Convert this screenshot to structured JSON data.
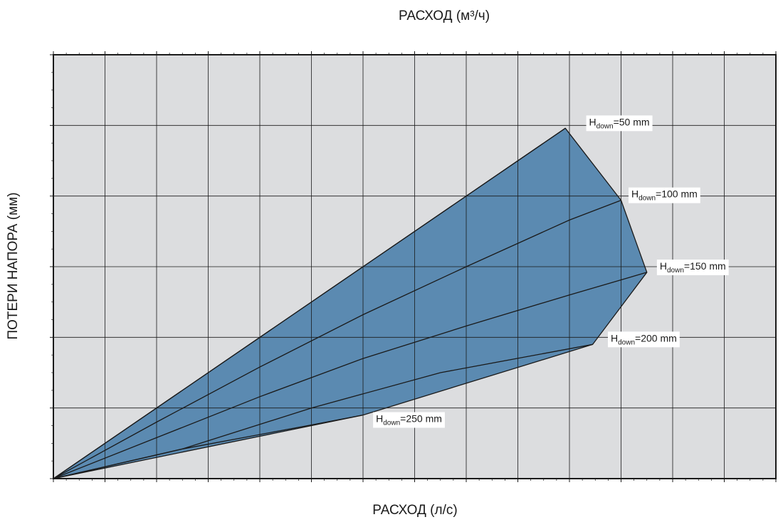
{
  "chart_data": {
    "type": "area",
    "title": "",
    "xlabel": "РАСХОД (л/с)",
    "ylabel": "ПОТЕРИ НАПОРА (мм)",
    "x2label": "РАСХОД (м³/ч)",
    "xlim": [
      0,
      14
    ],
    "ylim": [
      0,
      300
    ],
    "x_ticks": [
      0,
      1,
      2,
      3,
      4,
      5,
      6,
      7,
      8,
      9,
      10,
      11,
      12,
      13,
      14
    ],
    "y_ticks": [
      0,
      50,
      100,
      150,
      200,
      250,
      300
    ],
    "x2_ticks": [
      "0",
      "4",
      "7",
      "11",
      "14",
      "18",
      "22",
      "25",
      "29",
      "32",
      "36",
      "40",
      "43",
      "47",
      "50"
    ],
    "grid": true,
    "colors": {
      "plot_bg": "#dcdddf",
      "fill": "#5b8ab1",
      "line": "#1a1a1a",
      "grid": "#1a1a1a"
    },
    "region_boundary": {
      "x": [
        0,
        9.92,
        11,
        11.5,
        10.45,
        6,
        0
      ],
      "y": [
        0,
        248,
        197,
        146,
        95,
        45,
        0
      ]
    },
    "series": [
      {
        "name": "50 mm",
        "x": [
          0,
          9.92
        ],
        "y": [
          0,
          248
        ]
      },
      {
        "name": "100 mm",
        "x": [
          0,
          2,
          4,
          6,
          8,
          10,
          11
        ],
        "y": [
          0,
          40,
          79,
          116,
          150,
          183,
          197
        ]
      },
      {
        "name": "150 mm",
        "x": [
          0,
          2,
          4,
          6,
          8,
          10,
          11.5
        ],
        "y": [
          0,
          29,
          58,
          85,
          108,
          130,
          146
        ]
      },
      {
        "name": "200 mm",
        "x": [
          0,
          2.5,
          5,
          7.5,
          10.45
        ],
        "y": [
          0,
          21,
          50,
          75,
          95
        ]
      },
      {
        "name": "250 mm",
        "x": [
          0,
          2.5,
          5,
          6
        ],
        "y": [
          0,
          21,
          38,
          45
        ]
      }
    ],
    "curve_labels": [
      {
        "h": "H",
        "sub": "down",
        "rest": "=50 mm",
        "series": "50 mm"
      },
      {
        "h": "H",
        "sub": "down",
        "rest": "=100 mm",
        "series": "100 mm"
      },
      {
        "h": "H",
        "sub": "down",
        "rest": "=150 mm",
        "series": "150 mm"
      },
      {
        "h": "H",
        "sub": "down",
        "rest": "=200 mm",
        "series": "200 mm"
      },
      {
        "h": "H",
        "sub": "down",
        "rest": "=250 mm",
        "series": "250 mm"
      }
    ]
  }
}
